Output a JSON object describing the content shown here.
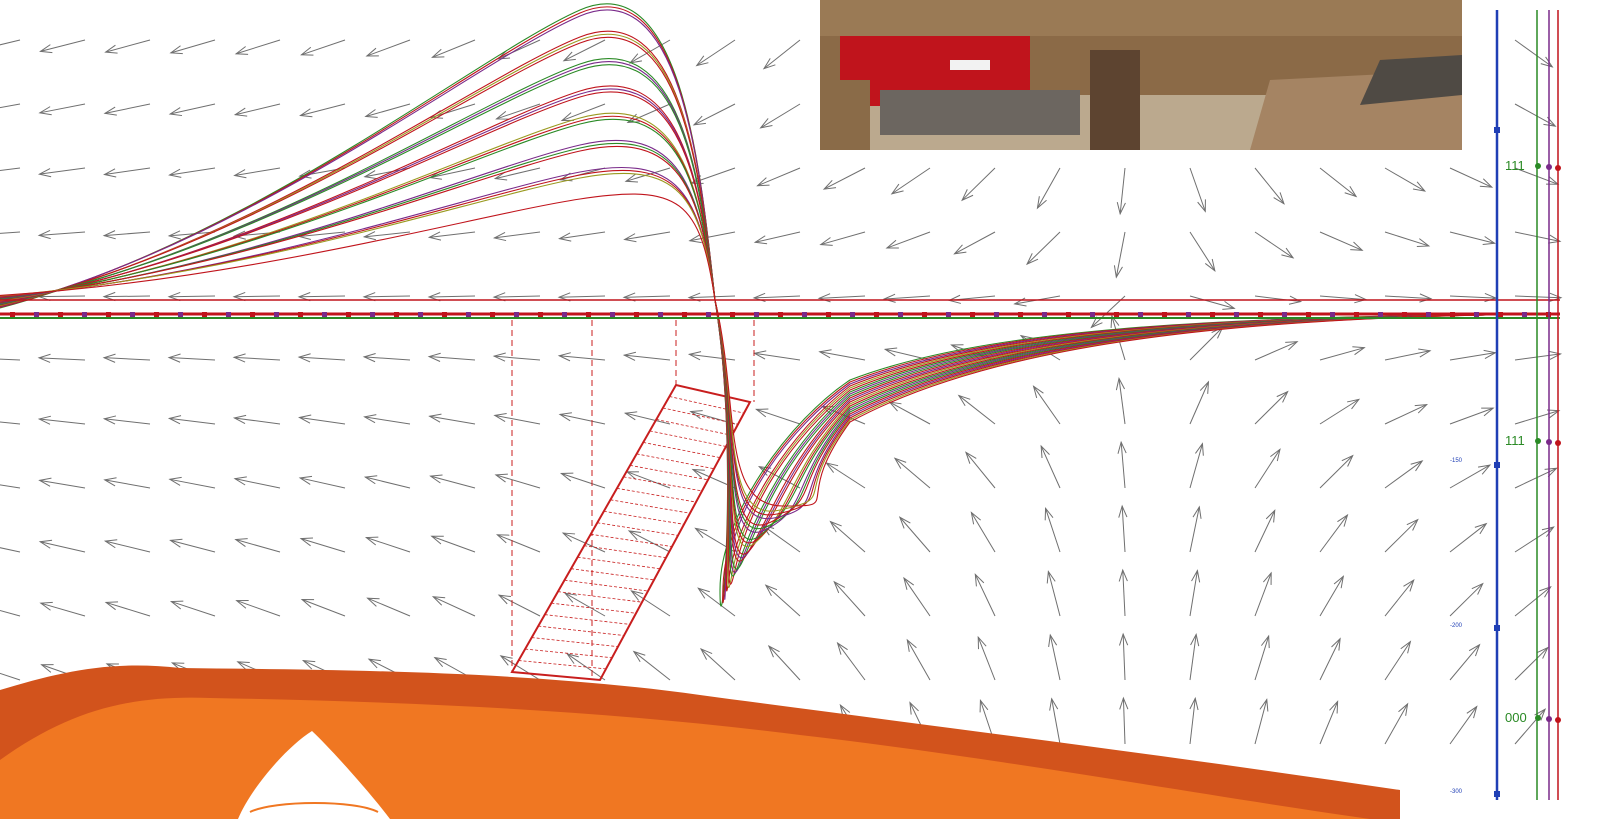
{
  "figure": {
    "background": "#ffffff",
    "colors": {
      "arrows": "#6f6f6f",
      "profile_red": "#c0141c",
      "profile_green": "#2a8a25",
      "profile_purple": "#7a2a8a",
      "profile_olive": "#9a9a20",
      "prism_red": "#c81e1e",
      "axis_blue": "#1f3fb5",
      "terrain_dark": "#d2531c",
      "terrain_light": "#f07722",
      "mountain_white": "#ffffff"
    },
    "icons": [
      "vector-field",
      "anomaly-profiles",
      "dipping-body",
      "construction-photo",
      "terrain-logo",
      "mountain-icon"
    ]
  },
  "photo": {
    "description_icon": "construction-photo-icon",
    "colors": {
      "wood": "#8b6a47",
      "wood_dark": "#5d4430",
      "red_case": "#c0141c",
      "grey": "#6c6660",
      "floor": "#bba98e"
    }
  },
  "scale": {
    "tick_labels": [
      "-150",
      "-200",
      "-300"
    ]
  },
  "legend": {
    "markers": [
      "111",
      "111",
      "000"
    ]
  }
}
